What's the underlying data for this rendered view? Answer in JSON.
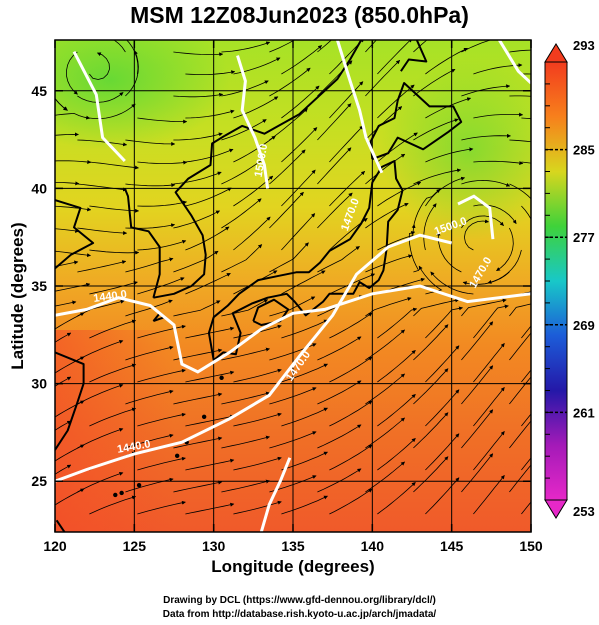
{
  "title": "MSM 12Z08Jun2023 (850.0hPa)",
  "x_axis": {
    "label": "Longitude (degrees)",
    "ticks": [
      "120",
      "125",
      "130",
      "135",
      "140",
      "145",
      "150"
    ],
    "range": [
      120,
      150
    ]
  },
  "y_axis": {
    "label": "Latitude  (degrees)",
    "ticks": [
      "25",
      "30",
      "35",
      "40",
      "45"
    ],
    "range": [
      22.4,
      47.6
    ]
  },
  "colorbar": {
    "max_label": "293",
    "min_label": "253",
    "tick_labels": [
      "285",
      "277",
      "269",
      "261"
    ],
    "colors_top_to_bottom": [
      "#f23c1e",
      "#f7801c",
      "#d8d61e",
      "#3fd23a",
      "#18c8c8",
      "#1c5cd8",
      "#2418a8",
      "#a41ab8",
      "#e628c8"
    ]
  },
  "contours": {
    "labels": [
      "1440.0",
      "1440.0",
      "1470.0",
      "1470.0",
      "1470.0",
      "1500.0",
      "1500.0"
    ],
    "color": "#ffffff"
  },
  "credits": {
    "line1": "Drawing by DCL (https://www.gfd-dennou.org/library/dcl/)",
    "line2": "Data from http://database.rish.kyoto-u.ac.jp/arch/jmadata/"
  }
}
